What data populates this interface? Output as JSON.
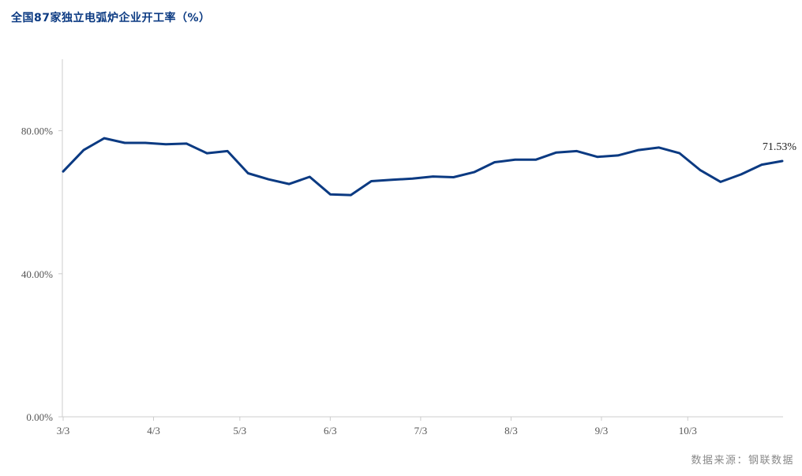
{
  "chart_data": {
    "type": "line",
    "title": "全国87家独立电弧炉企业开工率（%）",
    "source_note": "数据来源：钢联数据",
    "xlabel": "",
    "ylabel": "",
    "ylim": [
      0,
      100
    ],
    "y_ticks": [
      0,
      40,
      80
    ],
    "y_tick_labels": [
      "0.00%",
      "40.00%",
      "80.00%"
    ],
    "x_tick_labels": [
      "3/3",
      "4/3",
      "5/3",
      "6/3",
      "7/3",
      "8/3",
      "9/3",
      "10/3"
    ],
    "x_tick_indices": [
      0,
      4.4,
      8.6,
      13,
      17.4,
      21.8,
      26.2,
      30.4
    ],
    "grid": false,
    "line_color": "#0b3a82",
    "series": [
      {
        "values": [
          68.6,
          74.6,
          77.9,
          76.6,
          76.6,
          76.2,
          76.4,
          73.7,
          74.3,
          68.1,
          66.4,
          65.1,
          67.1,
          62.2,
          62.0,
          65.9,
          66.3,
          66.6,
          67.2,
          67.0,
          68.4,
          71.2,
          71.9,
          71.9,
          73.9,
          74.3,
          72.7,
          73.1,
          74.6,
          75.3,
          73.7,
          69.0,
          65.7,
          67.8,
          70.5,
          71.53
        ],
        "end_label": "71.53%"
      }
    ]
  }
}
